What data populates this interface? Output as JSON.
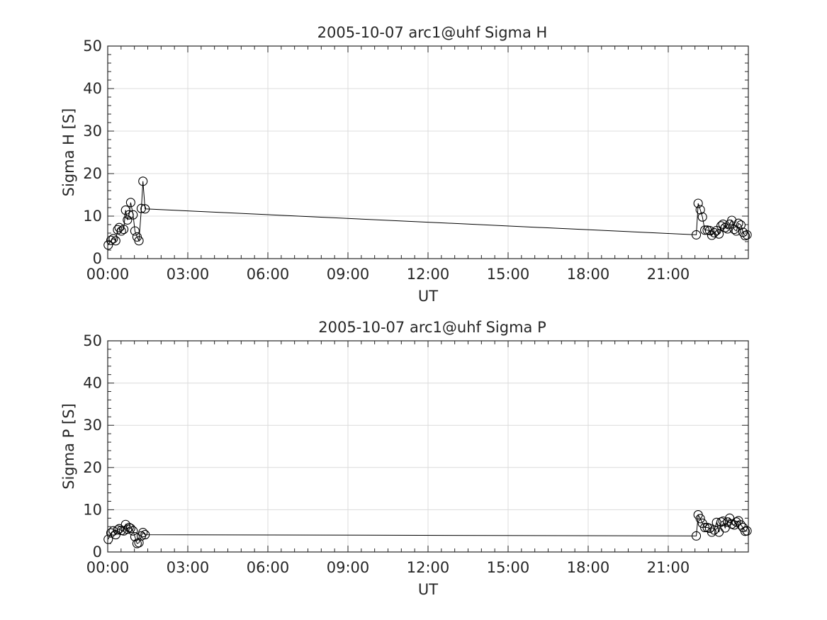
{
  "chart_data": [
    {
      "type": "line",
      "title": "2005-10-07  arc1@uhf Sigma H",
      "xlabel": "UT",
      "ylabel": "Sigma H [S]",
      "xlim": [
        0,
        24
      ],
      "ylim": [
        0,
        50
      ],
      "xticks": [
        0,
        3,
        6,
        9,
        12,
        15,
        18,
        21
      ],
      "xtick_labels": [
        "00:00",
        "03:00",
        "06:00",
        "09:00",
        "12:00",
        "15:00",
        "18:00",
        "21:00"
      ],
      "yticks": [
        0,
        10,
        20,
        30,
        40,
        50
      ],
      "ytick_labels": [
        "0",
        "10",
        "20",
        "30",
        "40",
        "50"
      ],
      "grid": true,
      "marker": "open-circle",
      "series": [
        {
          "x": [
            0.02,
            0.12,
            0.21,
            0.3,
            0.37,
            0.43,
            0.51,
            0.6,
            0.67,
            0.74,
            0.8,
            0.86,
            0.95,
            1.02,
            1.1,
            1.17,
            1.26,
            1.32,
            1.4,
            22.05,
            22.12,
            22.2,
            22.28,
            22.37,
            22.46,
            22.55,
            22.63,
            22.72,
            22.81,
            22.9,
            22.98,
            23.05,
            23.13,
            23.22,
            23.3,
            23.38,
            23.47,
            23.55,
            23.63,
            23.72,
            23.8,
            23.88,
            23.95
          ],
          "y": [
            3.2,
            4.3,
            4.7,
            4.2,
            6.8,
            7.3,
            6.5,
            6.9,
            11.4,
            9.1,
            10.3,
            13.2,
            10.3,
            6.5,
            5.1,
            4.2,
            11.8,
            18.2,
            11.7,
            5.6,
            13.0,
            11.5,
            9.8,
            6.7,
            6.7,
            6.6,
            5.5,
            6.1,
            6.6,
            5.8,
            7.7,
            8.1,
            7.3,
            7.0,
            8.1,
            9.0,
            6.9,
            6.5,
            8.3,
            7.9,
            6.2,
            5.4,
            5.6
          ]
        }
      ]
    },
    {
      "type": "line",
      "title": "2005-10-07  arc1@uhf Sigma P",
      "xlabel": "UT",
      "ylabel": "Sigma P [S]",
      "xlim": [
        0,
        24
      ],
      "ylim": [
        0,
        50
      ],
      "xticks": [
        0,
        3,
        6,
        9,
        12,
        15,
        18,
        21
      ],
      "xtick_labels": [
        "00:00",
        "03:00",
        "06:00",
        "09:00",
        "12:00",
        "15:00",
        "18:00",
        "21:00"
      ],
      "yticks": [
        0,
        10,
        20,
        30,
        40,
        50
      ],
      "ytick_labels": [
        "0",
        "10",
        "20",
        "30",
        "40",
        "50"
      ],
      "grid": true,
      "marker": "open-circle",
      "series": [
        {
          "x": [
            0.02,
            0.12,
            0.21,
            0.3,
            0.37,
            0.43,
            0.51,
            0.6,
            0.67,
            0.74,
            0.8,
            0.86,
            0.95,
            1.02,
            1.1,
            1.17,
            1.26,
            1.32,
            1.4,
            22.05,
            22.12,
            22.2,
            22.28,
            22.37,
            22.46,
            22.55,
            22.63,
            22.72,
            22.81,
            22.9,
            22.98,
            23.05,
            23.13,
            23.22,
            23.3,
            23.38,
            23.47,
            23.55,
            23.63,
            23.72,
            23.8,
            23.88,
            23.95
          ],
          "y": [
            3.0,
            4.5,
            5.0,
            4.1,
            5.2,
            5.5,
            5.1,
            5.0,
            6.5,
            5.4,
            5.8,
            5.6,
            5.0,
            3.6,
            2.0,
            2.2,
            3.8,
            4.6,
            4.1,
            3.8,
            8.8,
            7.9,
            6.8,
            5.8,
            5.8,
            5.6,
            4.7,
            5.2,
            7.0,
            4.7,
            7.1,
            7.3,
            5.7,
            7.1,
            8.0,
            6.6,
            6.4,
            7.1,
            7.4,
            6.4,
            5.8,
            4.9,
            5.0
          ]
        }
      ]
    }
  ]
}
